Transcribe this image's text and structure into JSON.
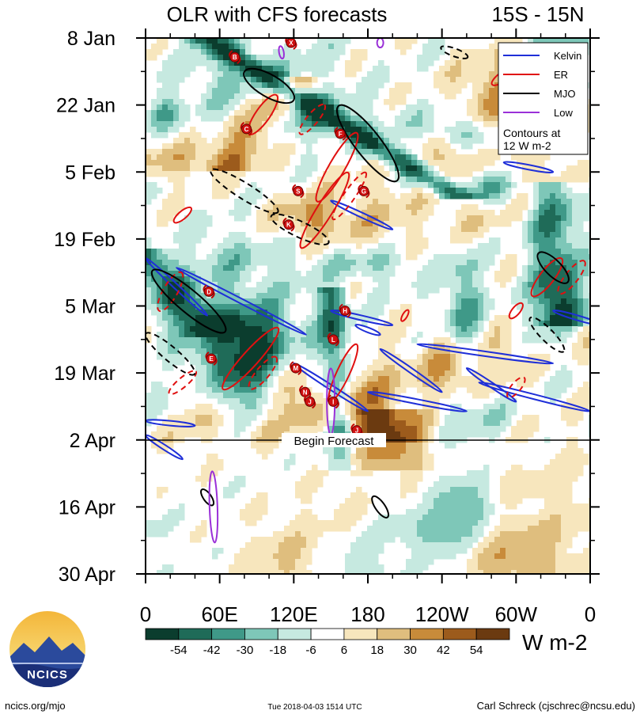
{
  "chart_data": {
    "type": "heatmap",
    "title": "OLR with CFS forecasts",
    "region": "15S - 15N",
    "y_ticks": [
      "8 Jan",
      "22 Jan",
      "5 Feb",
      "19 Feb",
      "5 Mar",
      "19 Mar",
      "2 Apr",
      "16 Apr",
      "30 Apr"
    ],
    "x_ticks": [
      "0",
      "60E",
      "120E",
      "180",
      "120W",
      "60W",
      "0"
    ],
    "x_range_deg_east": [
      0,
      360
    ],
    "y_range_days": [
      0,
      112
    ],
    "forecast_start_day": 84,
    "forecast_label": "Begin Forecast",
    "legend": {
      "items": [
        {
          "label": "Kelvin",
          "color": "#1f2fd8"
        },
        {
          "label": "ER",
          "color": "#e01010"
        },
        {
          "label": "MJO",
          "color": "#000000"
        },
        {
          "label": "Low",
          "color": "#9a30d8"
        }
      ],
      "note_line1": "Contours at",
      "note_line2": "12 W m-2"
    },
    "colorbar": {
      "levels": [
        "-54",
        "-42",
        "-30",
        "-18",
        "-6",
        "6",
        "18",
        "30",
        "42",
        "54"
      ],
      "colors": [
        "#0b3d2e",
        "#1f6b58",
        "#3f9988",
        "#7ec7b8",
        "#c6e9e0",
        "#ffffff",
        "#f7e6bd",
        "#dfbe7e",
        "#c88b3a",
        "#9c5b1c",
        "#6b3a10"
      ],
      "units": "W m-2"
    },
    "tc_letters": [
      "B",
      "X",
      "C",
      "F",
      "S",
      "G",
      "K",
      "D",
      "H",
      "E",
      "L",
      "M",
      "N",
      "J",
      "I",
      "J"
    ]
  },
  "footer": {
    "left": "ncics.org/mjo",
    "center": "Tue 2018-04-03 1514 UTC",
    "right": "Carl Schreck (cjschrec@ncsu.edu)",
    "logo_text": "NCICS"
  }
}
